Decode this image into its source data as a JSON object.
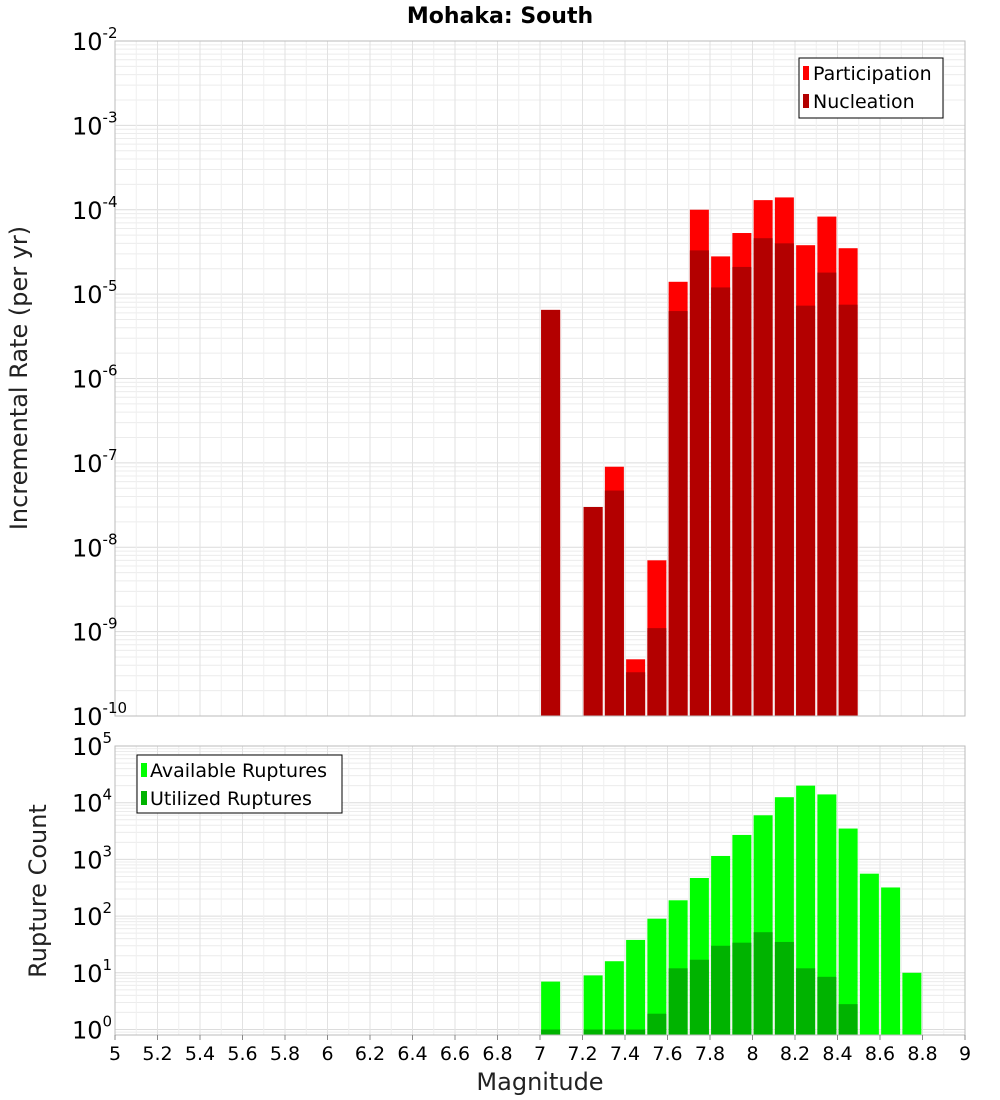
{
  "chart_data": [
    {
      "type": "bar",
      "title": "Mohaka: South",
      "xlabel": "Magnitude",
      "ylabel": "Incremental Rate (per yr)",
      "yscale": "log",
      "ylim": [
        1e-10,
        0.01
      ],
      "xlim": [
        5,
        9
      ],
      "grid": true,
      "legend_position": "top-right",
      "yticks": [
        {
          "base": "10",
          "exp": "-10"
        },
        {
          "base": "10",
          "exp": "-9"
        },
        {
          "base": "10",
          "exp": "-8"
        },
        {
          "base": "10",
          "exp": "-7"
        },
        {
          "base": "10",
          "exp": "-6"
        },
        {
          "base": "10",
          "exp": "-5"
        },
        {
          "base": "10",
          "exp": "-4"
        },
        {
          "base": "10",
          "exp": "-3"
        },
        {
          "base": "10",
          "exp": "-2"
        }
      ],
      "x": [
        7.05,
        7.25,
        7.35,
        7.45,
        7.55,
        7.65,
        7.75,
        7.85,
        7.95,
        8.05,
        8.15,
        8.25,
        8.35,
        8.45
      ],
      "series": [
        {
          "name": "Participation",
          "color": "#ff0000",
          "values": [
            6.5e-06,
            3e-08,
            9e-08,
            4.7e-10,
            7e-09,
            1.4e-05,
            0.0001,
            2.8e-05,
            5.3e-05,
            0.00013,
            0.00014,
            3.8e-05,
            8.3e-05,
            3.5e-05
          ]
        },
        {
          "name": "Nucleation",
          "color": "#b30000",
          "values": [
            6.5e-06,
            3e-08,
            4.7e-08,
            3.3e-10,
            1.1e-09,
            6.3e-06,
            3.3e-05,
            1.2e-05,
            2.1e-05,
            4.6e-05,
            4e-05,
            7.3e-06,
            1.8e-05,
            7.5e-06
          ]
        }
      ]
    },
    {
      "type": "bar",
      "title": "",
      "xlabel": "Magnitude",
      "ylabel": "Rupture Count",
      "yscale": "log",
      "ylim": [
        0.8,
        100000
      ],
      "xlim": [
        5,
        9
      ],
      "grid": true,
      "legend_position": "top-left",
      "yticks": [
        {
          "base": "10",
          "exp": "0"
        },
        {
          "base": "10",
          "exp": "1"
        },
        {
          "base": "10",
          "exp": "2"
        },
        {
          "base": "10",
          "exp": "3"
        },
        {
          "base": "10",
          "exp": "4"
        },
        {
          "base": "10",
          "exp": "5"
        }
      ],
      "xticks": [
        "5",
        "5.2",
        "5.4",
        "5.6",
        "5.8",
        "6",
        "6.2",
        "6.4",
        "6.6",
        "6.8",
        "7",
        "7.2",
        "7.4",
        "7.6",
        "7.8",
        "8",
        "8.2",
        "8.4",
        "8.6",
        "8.8",
        "9"
      ],
      "x": [
        7.05,
        7.25,
        7.35,
        7.45,
        7.55,
        7.65,
        7.75,
        7.85,
        7.95,
        8.05,
        8.15,
        8.25,
        8.35,
        8.45,
        8.55,
        8.65,
        8.75
      ],
      "series": [
        {
          "name": "Available Ruptures",
          "color": "#00ff00",
          "values": [
            7,
            9,
            16,
            38,
            90,
            190,
            470,
            1150,
            2700,
            6000,
            12500,
            20000,
            14000,
            3500,
            560,
            320,
            10
          ]
        },
        {
          "name": "Utilized Ruptures",
          "color": "#00b300",
          "values": [
            1,
            1,
            1,
            1,
            1.9,
            12,
            17,
            30,
            34,
            52,
            35,
            12,
            8.5,
            2.8,
            0,
            0,
            0
          ]
        }
      ]
    }
  ]
}
